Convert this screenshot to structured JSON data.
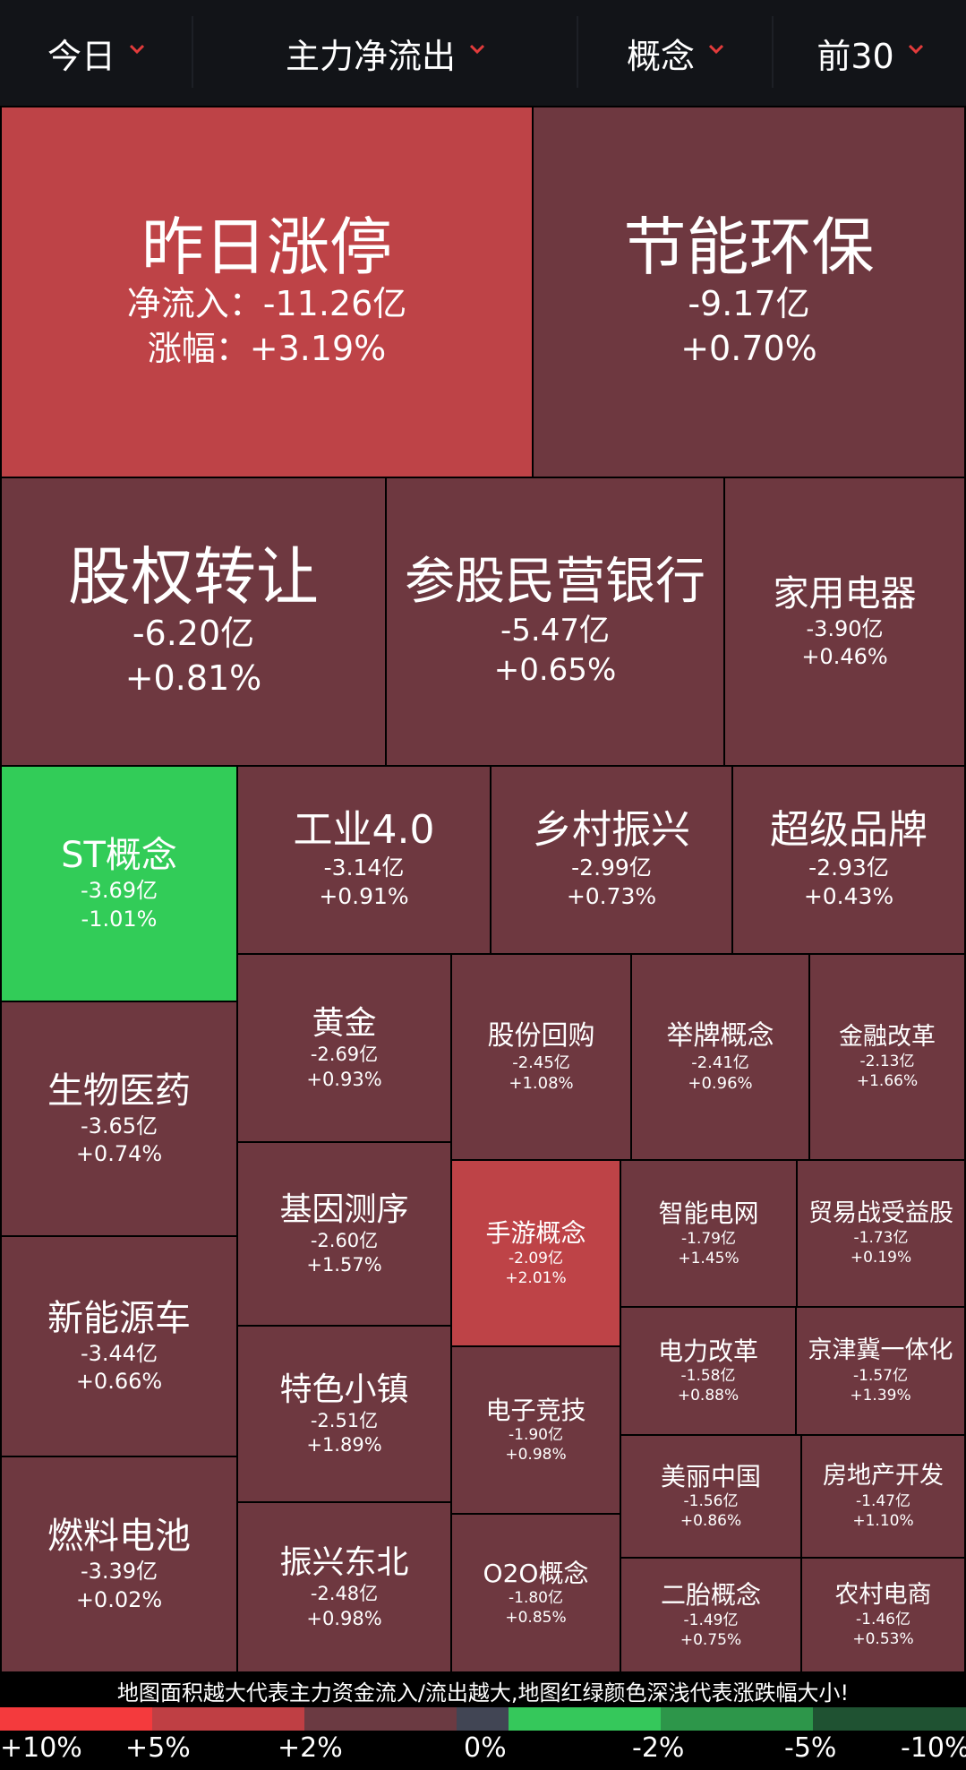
{
  "filters": {
    "period": "今日",
    "metric": "主力净流出",
    "category": "概念",
    "range": "前30"
  },
  "colors": {
    "dark_red": "#6e3840",
    "mid_red": "#be4347",
    "green": "#32cc58",
    "chevron": "#e23b3b",
    "header_bg": "#121418"
  },
  "tiles": [
    {
      "name": "昨日涨停",
      "flow_label": "净流入",
      "flow_sep": "：",
      "flow": "-11.26亿",
      "pct_label": "涨幅",
      "pct_sep": "：",
      "pct": "+3.19%"
    },
    {
      "name": "节能环保",
      "flow": "-9.17亿",
      "pct": "+0.70%"
    },
    {
      "name": "股权转让",
      "flow": "-6.20亿",
      "pct": "+0.81%"
    },
    {
      "name": "参股民营银行",
      "flow": "-5.47亿",
      "pct": "+0.65%"
    },
    {
      "name": "家用电器",
      "flow": "-3.90亿",
      "pct": "+0.46%"
    },
    {
      "name": "ST概念",
      "flow": "-3.69亿",
      "pct": "-1.01%"
    },
    {
      "name": "工业4.0",
      "flow": "-3.14亿",
      "pct": "+0.91%"
    },
    {
      "name": "乡村振兴",
      "flow": "-2.99亿",
      "pct": "+0.73%"
    },
    {
      "name": "超级品牌",
      "flow": "-2.93亿",
      "pct": "+0.43%"
    },
    {
      "name": "生物医药",
      "flow": "-3.65亿",
      "pct": "+0.74%"
    },
    {
      "name": "新能源车",
      "flow": "-3.44亿",
      "pct": "+0.66%"
    },
    {
      "name": "燃料电池",
      "flow": "-3.39亿",
      "pct": "+0.02%"
    },
    {
      "name": "黄金",
      "flow": "-2.69亿",
      "pct": "+0.93%"
    },
    {
      "name": "基因测序",
      "flow": "-2.60亿",
      "pct": "+1.57%"
    },
    {
      "name": "特色小镇",
      "flow": "-2.51亿",
      "pct": "+1.89%"
    },
    {
      "name": "振兴东北",
      "flow": "-2.48亿",
      "pct": "+0.98%"
    },
    {
      "name": "股份回购",
      "flow": "-2.45亿",
      "pct": "+1.08%"
    },
    {
      "name": "举牌概念",
      "flow": "-2.41亿",
      "pct": "+0.96%"
    },
    {
      "name": "金融改革",
      "flow": "-2.13亿",
      "pct": "+1.66%"
    },
    {
      "name": "手游概念",
      "flow": "-2.09亿",
      "pct": "+2.01%"
    },
    {
      "name": "电子竞技",
      "flow": "-1.90亿",
      "pct": "+0.98%"
    },
    {
      "name": "O2O概念",
      "flow": "-1.80亿",
      "pct": "+0.85%"
    },
    {
      "name": "智能电网",
      "flow": "-1.79亿",
      "pct": "+1.45%"
    },
    {
      "name": "贸易战受益股",
      "flow": "-1.73亿",
      "pct": "+0.19%"
    },
    {
      "name": "电力改革",
      "flow": "-1.58亿",
      "pct": "+0.88%"
    },
    {
      "name": "京津冀一体化",
      "flow": "-1.57亿",
      "pct": "+1.39%"
    },
    {
      "name": "美丽中国",
      "flow": "-1.56亿",
      "pct": "+0.86%"
    },
    {
      "name": "房地产开发",
      "flow": "-1.47亿",
      "pct": "+1.10%"
    },
    {
      "name": "二胎概念",
      "flow": "-1.49亿",
      "pct": "+0.75%"
    },
    {
      "name": "农村电商",
      "flow": "-1.46亿",
      "pct": "+0.53%"
    }
  ],
  "caption": "地图面积越大代表主力资金流入/流出越大,地图红绿颜色深浅代表涨跌幅大小!",
  "legend": {
    "labels": [
      "+10%",
      "+5%",
      "+2%",
      "0%",
      "-2%",
      "-5%",
      "-10%"
    ],
    "colors": [
      "#f43a3d",
      "#bf3f44",
      "#6b3a42",
      "#414554",
      "#35c85b",
      "#2d964a",
      "#1f5232"
    ]
  }
}
